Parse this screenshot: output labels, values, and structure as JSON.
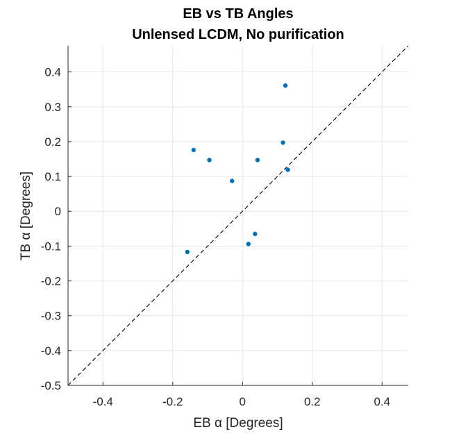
{
  "chart_data": {
    "type": "scatter",
    "title": "EB vs TB Angles",
    "subtitle": "Unlensed LCDM, No purification",
    "xlabel": "EB α [Degrees]",
    "ylabel": "TB α [Degrees]",
    "xlim": [
      -0.5,
      0.475
    ],
    "ylim": [
      -0.5,
      0.475
    ],
    "xticks": [
      -0.4,
      -0.2,
      0,
      0.2,
      0.4
    ],
    "xtick_labels": [
      "-0.4",
      "-0.2",
      "0",
      "0.2",
      "0.4"
    ],
    "yticks": [
      -0.5,
      -0.4,
      -0.3,
      -0.2,
      -0.1,
      0,
      0.1,
      0.2,
      0.3,
      0.4
    ],
    "ytick_labels": [
      "-0.5",
      "-0.4",
      "-0.3",
      "-0.2",
      "-0.1",
      "0",
      "0.1",
      "0.2",
      "0.3",
      "0.4"
    ],
    "grid": true,
    "reference_line": "y = x (dashed)",
    "colors": {
      "points": "#0072bd",
      "grid": "#e6e6e6",
      "axis": "#262626",
      "reference_line": "#000000"
    },
    "points": [
      {
        "x": 0.123,
        "y": 0.361
      },
      {
        "x": -0.14,
        "y": 0.176
      },
      {
        "x": -0.095,
        "y": 0.147
      },
      {
        "x": 0.116,
        "y": 0.197
      },
      {
        "x": 0.043,
        "y": 0.147
      },
      {
        "x": 0.13,
        "y": 0.119
      },
      {
        "x": -0.03,
        "y": 0.087
      },
      {
        "x": 0.036,
        "y": -0.065
      },
      {
        "x": 0.017,
        "y": -0.094
      },
      {
        "x": -0.158,
        "y": -0.117
      }
    ]
  }
}
